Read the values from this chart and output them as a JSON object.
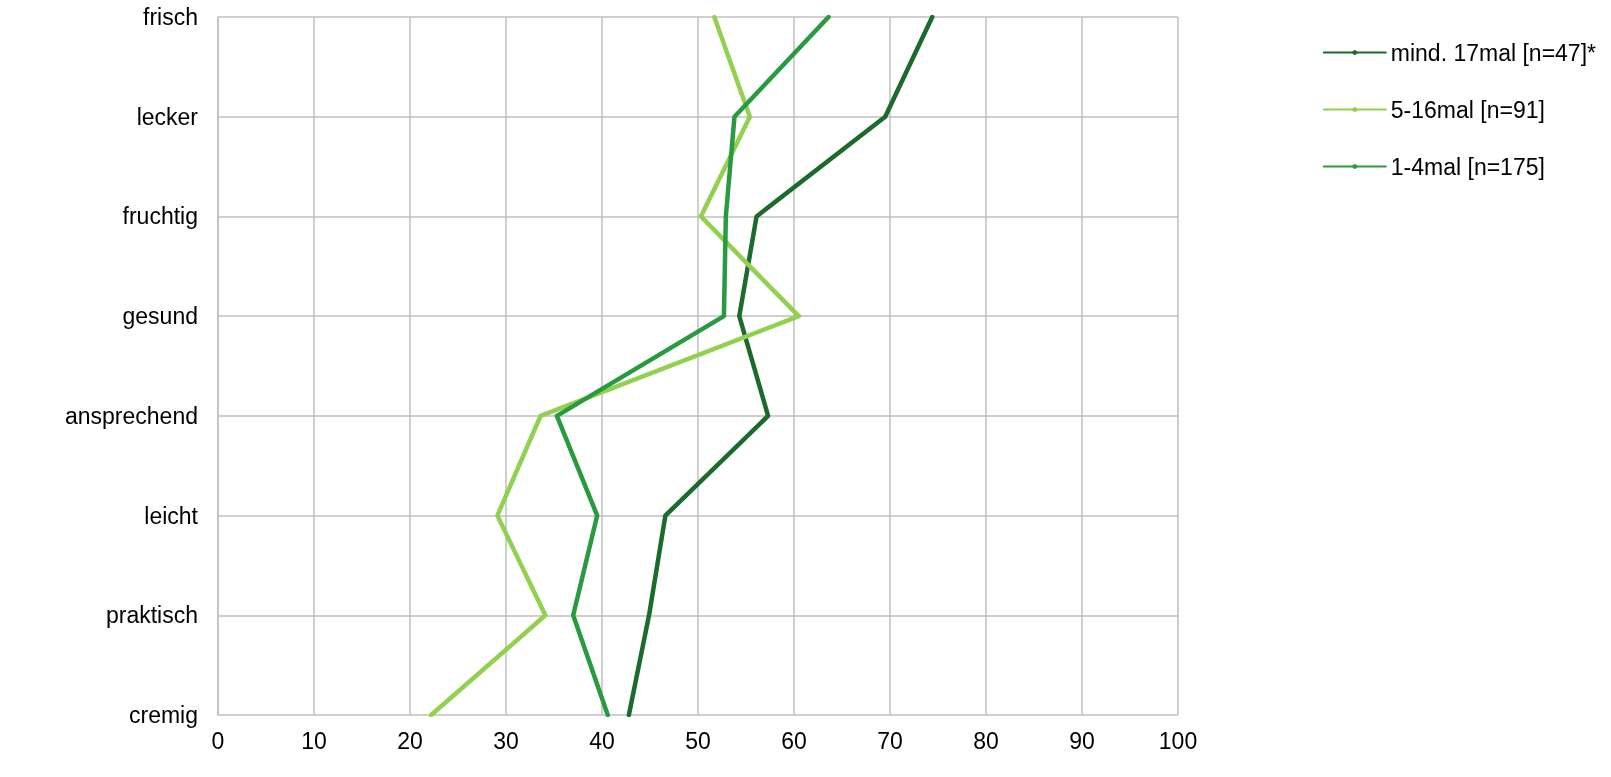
{
  "chart_data": {
    "type": "line",
    "orientation": "horizontal",
    "categories": [
      "frisch",
      "lecker",
      "fruchtig",
      "gesund",
      "ansprechend",
      "leicht",
      "praktisch",
      "cremig"
    ],
    "series": [
      {
        "name": "mind. 17mal [n=47]*",
        "color": "#1b6b2c",
        "values": [
          74.4,
          69.5,
          56.1,
          54.3,
          57.3,
          46.6,
          44.9,
          42.8
        ]
      },
      {
        "name": "5-16mal [n=91]",
        "color": "#92d050",
        "values": [
          51.7,
          55.4,
          50.3,
          60.5,
          33.6,
          29.1,
          34.1,
          22.2
        ]
      },
      {
        "name": "1-4mal [n=175]",
        "color": "#2a9a40",
        "values": [
          63.6,
          53.8,
          52.9,
          52.7,
          35.3,
          39.5,
          37.0,
          40.6
        ]
      }
    ],
    "xlim": [
      0,
      100
    ],
    "xticks": [
      0,
      10,
      20,
      30,
      40,
      50,
      60,
      70,
      80,
      90,
      100
    ],
    "grid": true,
    "legend": "top right",
    "marker": "none",
    "line_style": "solid"
  }
}
